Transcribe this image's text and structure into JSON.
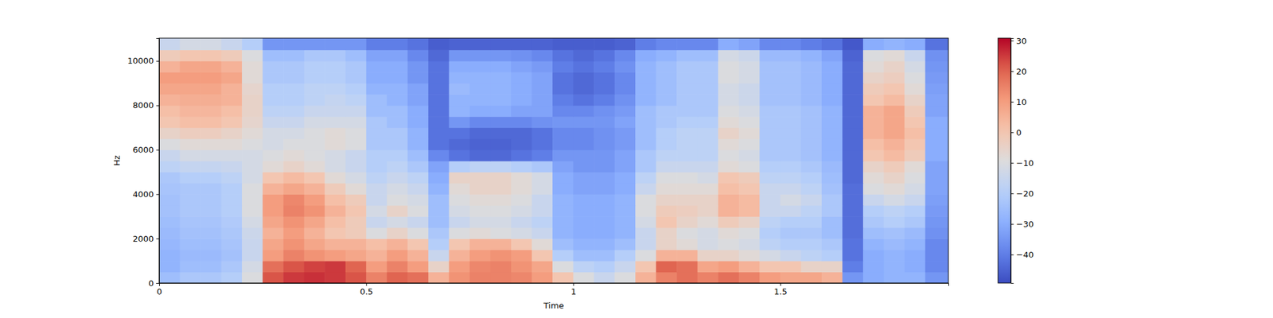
{
  "chart_data": {
    "type": "heatmap",
    "xlabel": "Time",
    "ylabel": "Hz",
    "xlim": [
      0,
      1.906
    ],
    "ylim": [
      0,
      11025
    ],
    "xticks": [
      0,
      0.5,
      1,
      1.5
    ],
    "yticks": [
      0,
      2000,
      4000,
      6000,
      8000,
      10000
    ],
    "x_bins": [
      0,
      0.05,
      0.1,
      0.15,
      0.2,
      0.25,
      0.3,
      0.35,
      0.4,
      0.45,
      0.5,
      0.55,
      0.6,
      0.65,
      0.7,
      0.75,
      0.8,
      0.85,
      0.9,
      0.95,
      1.0,
      1.05,
      1.1,
      1.15,
      1.2,
      1.25,
      1.3,
      1.35,
      1.4,
      1.45,
      1.5,
      1.55,
      1.6,
      1.65,
      1.7,
      1.75,
      1.8,
      1.85,
      1.906
    ],
    "y_bins": [
      0,
      500,
      1000,
      1500,
      2000,
      2500,
      3000,
      3500,
      4000,
      4500,
      5000,
      5500,
      6000,
      6500,
      7000,
      7500,
      8000,
      8500,
      9000,
      9500,
      10000,
      10500,
      11025
    ],
    "values": [
      [
        -25,
        -22,
        -22,
        -20,
        -10,
        22,
        25,
        26,
        25,
        22,
        15,
        20,
        18,
        5,
        12,
        15,
        15,
        14,
        10,
        0,
        -10,
        -15,
        -10,
        5,
        15,
        18,
        15,
        18,
        15,
        10,
        8,
        8,
        5,
        -35,
        -30,
        -28,
        -28,
        -35
      ],
      [
        -28,
        -25,
        -25,
        -22,
        -12,
        18,
        22,
        24,
        25,
        20,
        10,
        15,
        10,
        -5,
        10,
        14,
        15,
        12,
        8,
        -10,
        -18,
        -20,
        -15,
        0,
        20,
        18,
        8,
        10,
        5,
        0,
        0,
        -5,
        -5,
        -40,
        -30,
        -28,
        -30,
        -38
      ],
      [
        -28,
        -26,
        -26,
        -24,
        -15,
        10,
        15,
        12,
        10,
        8,
        5,
        10,
        5,
        -15,
        5,
        10,
        12,
        10,
        0,
        -20,
        -25,
        -25,
        -20,
        -10,
        5,
        5,
        -5,
        -5,
        -8,
        -12,
        -15,
        -18,
        -20,
        -42,
        -30,
        -28,
        -30,
        -38
      ],
      [
        -27,
        -25,
        -25,
        -23,
        -15,
        8,
        12,
        8,
        5,
        5,
        2,
        5,
        0,
        -20,
        0,
        5,
        5,
        0,
        -8,
        -25,
        -28,
        -28,
        -25,
        -15,
        -5,
        -8,
        -12,
        -10,
        -12,
        -18,
        -20,
        -20,
        -22,
        -42,
        -28,
        -26,
        -28,
        -38
      ],
      [
        -26,
        -24,
        -24,
        -22,
        -14,
        5,
        10,
        5,
        0,
        -2,
        -10,
        -5,
        -10,
        -22,
        -10,
        -8,
        -10,
        -12,
        -15,
        -28,
        -30,
        -30,
        -28,
        -15,
        -5,
        -10,
        -12,
        -8,
        -10,
        -20,
        -22,
        -22,
        -25,
        -43,
        -25,
        -24,
        -26,
        -36
      ],
      [
        -25,
        -23,
        -23,
        -21,
        -12,
        8,
        12,
        8,
        2,
        -2,
        -15,
        -12,
        -15,
        -25,
        -15,
        -12,
        -12,
        -15,
        -18,
        -28,
        -30,
        -30,
        -28,
        -12,
        0,
        -5,
        -8,
        -2,
        -5,
        -18,
        -20,
        -20,
        -25,
        -43,
        -22,
        -20,
        -22,
        -35
      ],
      [
        -24,
        -22,
        -22,
        -20,
        -10,
        10,
        15,
        12,
        5,
        0,
        -12,
        -5,
        -10,
        -25,
        -12,
        -10,
        -10,
        -12,
        -15,
        -28,
        -30,
        -30,
        -28,
        -10,
        -2,
        -3,
        -5,
        5,
        3,
        -15,
        -15,
        -18,
        -22,
        -43,
        -20,
        -18,
        -20,
        -34
      ],
      [
        -24,
        -22,
        -22,
        -20,
        -10,
        10,
        14,
        10,
        2,
        -2,
        -15,
        -10,
        -12,
        -25,
        -10,
        -8,
        -8,
        -10,
        -15,
        -28,
        -30,
        -30,
        -28,
        -10,
        -5,
        -5,
        -5,
        5,
        3,
        -15,
        -12,
        -15,
        -22,
        -43,
        -15,
        -12,
        -15,
        -33
      ],
      [
        -23,
        -22,
        -22,
        -20,
        -10,
        5,
        8,
        5,
        -2,
        -8,
        -15,
        -12,
        -15,
        -28,
        -8,
        -5,
        -5,
        -8,
        -12,
        -30,
        -32,
        -32,
        -30,
        -15,
        -8,
        -8,
        -8,
        2,
        0,
        -15,
        -15,
        -18,
        -24,
        -43,
        -10,
        -8,
        -12,
        -32
      ],
      [
        -22,
        -20,
        -20,
        -18,
        -12,
        0,
        3,
        0,
        -8,
        -12,
        -18,
        -15,
        -18,
        -30,
        -5,
        -5,
        -5,
        -8,
        -12,
        -30,
        -32,
        -32,
        -30,
        -18,
        -10,
        -10,
        -12,
        0,
        -2,
        -18,
        -18,
        -20,
        -25,
        -44,
        -8,
        -5,
        -10,
        -32
      ],
      [
        -18,
        -16,
        -16,
        -15,
        -12,
        -8,
        -5,
        -8,
        -12,
        -15,
        -20,
        -18,
        -22,
        -32,
        -20,
        -18,
        -18,
        -20,
        -22,
        -32,
        -35,
        -35,
        -32,
        -22,
        -15,
        -15,
        -15,
        -8,
        -10,
        -20,
        -20,
        -22,
        -26,
        -44,
        -5,
        -2,
        -8,
        -32
      ],
      [
        -15,
        -12,
        -12,
        -12,
        -12,
        -10,
        -8,
        -10,
        -12,
        -15,
        -20,
        -20,
        -25,
        -38,
        -42,
        -44,
        -44,
        -42,
        -40,
        -35,
        -35,
        -35,
        -32,
        -22,
        -18,
        -18,
        -18,
        -10,
        -12,
        -22,
        -22,
        -24,
        -28,
        -44,
        0,
        3,
        -2,
        -30
      ],
      [
        -10,
        -8,
        -8,
        -8,
        -10,
        -12,
        -10,
        -10,
        -8,
        -10,
        -22,
        -22,
        -28,
        -42,
        -44,
        -45,
        -45,
        -44,
        -42,
        -38,
        -38,
        -36,
        -34,
        -25,
        -20,
        -18,
        -18,
        -8,
        -10,
        -22,
        -22,
        -24,
        -28,
        -44,
        2,
        5,
        0,
        -30
      ],
      [
        -5,
        -3,
        -3,
        -5,
        -8,
        -12,
        -12,
        -10,
        -8,
        -10,
        -22,
        -22,
        -28,
        -42,
        -42,
        -44,
        -44,
        -44,
        -42,
        -38,
        -38,
        -36,
        -34,
        -25,
        -20,
        -18,
        -18,
        -5,
        -8,
        -22,
        -22,
        -24,
        -28,
        -44,
        5,
        8,
        2,
        -30
      ],
      [
        0,
        2,
        2,
        0,
        -6,
        -15,
        -15,
        -12,
        -12,
        -12,
        -22,
        -25,
        -30,
        -42,
        -35,
        -38,
        -38,
        -38,
        -36,
        -35,
        -35,
        -35,
        -32,
        -25,
        -22,
        -20,
        -20,
        -8,
        -10,
        -22,
        -22,
        -24,
        -28,
        -44,
        5,
        8,
        0,
        -30
      ],
      [
        2,
        4,
        4,
        2,
        -5,
        -18,
        -18,
        -15,
        -15,
        -15,
        -25,
        -25,
        -30,
        -42,
        -28,
        -30,
        -30,
        -32,
        -32,
        -38,
        -38,
        -36,
        -34,
        -25,
        -22,
        -22,
        -22,
        -10,
        -12,
        -22,
        -22,
        -24,
        -28,
        -44,
        5,
        8,
        -2,
        -32
      ],
      [
        5,
        6,
        6,
        5,
        -5,
        -20,
        -20,
        -18,
        -16,
        -18,
        -25,
        -28,
        -32,
        -42,
        -28,
        -28,
        -28,
        -30,
        -32,
        -40,
        -42,
        -40,
        -36,
        -28,
        -25,
        -22,
        -22,
        -12,
        -14,
        -24,
        -24,
        -26,
        -30,
        -44,
        0,
        3,
        -5,
        -32
      ],
      [
        8,
        8,
        8,
        5,
        -6,
        -20,
        -20,
        -18,
        -18,
        -20,
        -28,
        -28,
        -32,
        -42,
        -26,
        -28,
        -28,
        -30,
        -32,
        -42,
        -44,
        -42,
        -38,
        -28,
        -25,
        -22,
        -22,
        -12,
        -14,
        -24,
        -24,
        -26,
        -30,
        -44,
        -2,
        0,
        -8,
        -33
      ],
      [
        10,
        10,
        10,
        8,
        -8,
        -22,
        -22,
        -20,
        -20,
        -22,
        -30,
        -30,
        -35,
        -42,
        -28,
        -28,
        -28,
        -30,
        -32,
        -42,
        -44,
        -42,
        -38,
        -28,
        -25,
        -22,
        -22,
        -10,
        -12,
        -24,
        -24,
        -26,
        -30,
        -44,
        -5,
        -3,
        -10,
        -34
      ],
      [
        5,
        8,
        8,
        5,
        -8,
        -22,
        -22,
        -20,
        -20,
        -22,
        -30,
        -30,
        -35,
        -42,
        -30,
        -30,
        -30,
        -32,
        -34,
        -40,
        -42,
        -40,
        -36,
        -28,
        -25,
        -22,
        -22,
        -10,
        -12,
        -24,
        -24,
        -26,
        -30,
        -44,
        -8,
        -5,
        -12,
        -35
      ],
      [
        -2,
        0,
        0,
        -2,
        -10,
        -25,
        -25,
        -22,
        -22,
        -25,
        -32,
        -32,
        -38,
        -44,
        -35,
        -35,
        -35,
        -36,
        -38,
        -42,
        -44,
        -42,
        -38,
        -30,
        -28,
        -25,
        -25,
        -12,
        -14,
        -26,
        -26,
        -28,
        -32,
        -45,
        -10,
        -8,
        -15,
        -36
      ],
      [
        -15,
        -12,
        -12,
        -15,
        -20,
        -35,
        -35,
        -35,
        -35,
        -35,
        -40,
        -40,
        -42,
        -46,
        -45,
        -45,
        -45,
        -45,
        -45,
        -46,
        -46,
        -46,
        -45,
        -40,
        -38,
        -38,
        -38,
        -30,
        -32,
        -38,
        -38,
        -40,
        -42,
        -47,
        -30,
        -28,
        -30,
        -42
      ]
    ],
    "colorbar": {
      "range": [
        -49.3,
        30.8
      ],
      "ticks": [
        {
          "value": -40,
          "label": "−40"
        },
        {
          "value": -30,
          "label": "−30"
        },
        {
          "value": -20,
          "label": "−20"
        },
        {
          "value": -10,
          "label": "−10"
        },
        0,
        10,
        20,
        30
      ]
    }
  }
}
